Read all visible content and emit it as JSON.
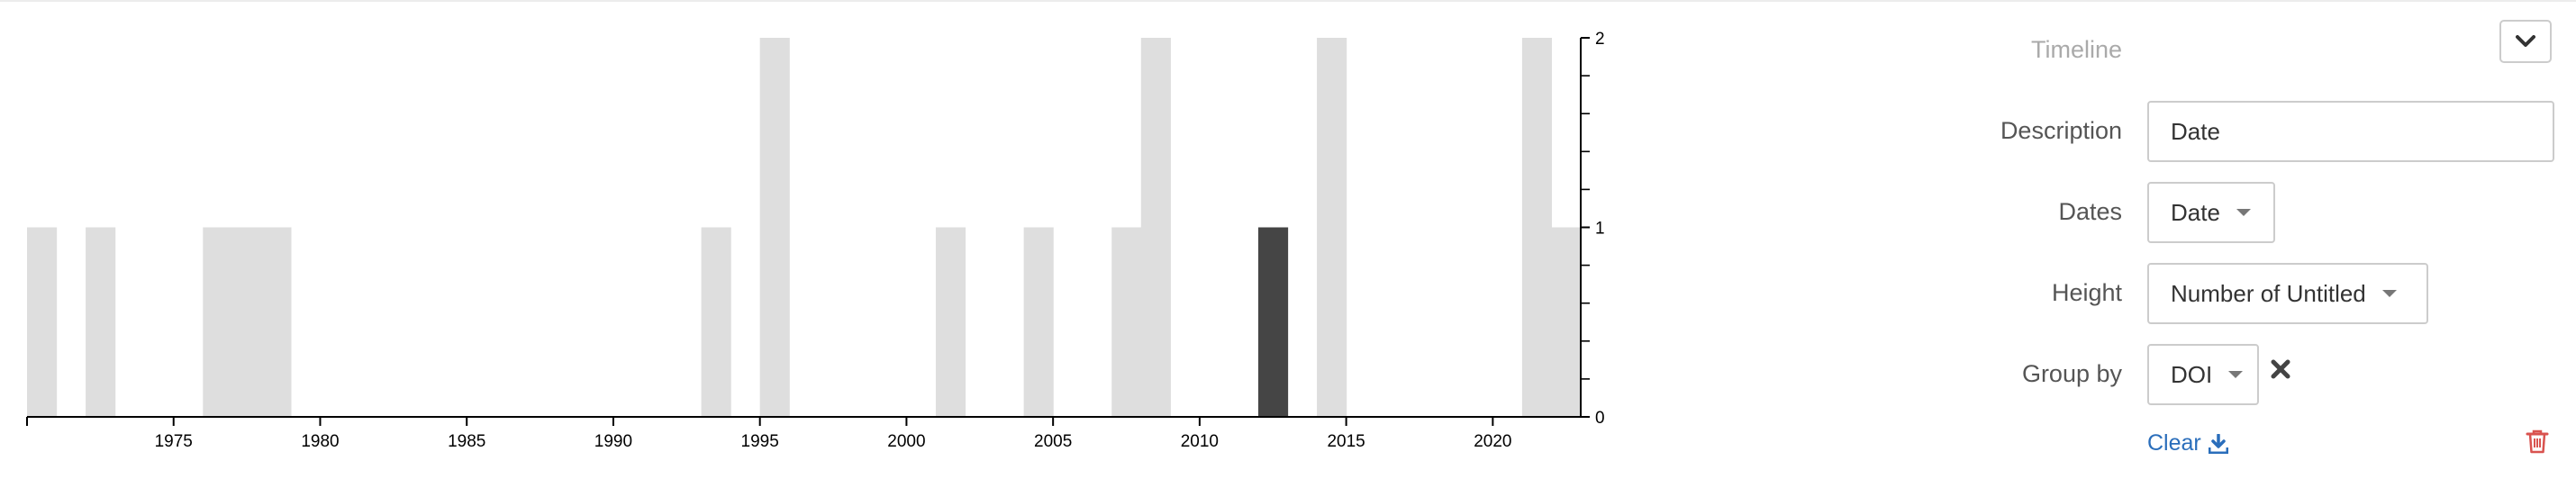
{
  "chart_data": {
    "type": "bar",
    "x": [
      1970,
      1972,
      1976,
      1977,
      1978,
      1993,
      1995,
      2001,
      2004,
      2007,
      2008,
      2012,
      2014,
      2021,
      2022
    ],
    "values": [
      1,
      1,
      1,
      1,
      1,
      1,
      2,
      1,
      1,
      1,
      2,
      1,
      2,
      2,
      1
    ],
    "highlighted": [
      2012
    ],
    "xlim": [
      1970,
      2023
    ],
    "ylim": [
      0,
      2
    ],
    "x_ticks": [
      "1975",
      "1980",
      "1985",
      "1990",
      "1995",
      "2000",
      "2005",
      "2010",
      "2015",
      "2020"
    ],
    "y_ticks": [
      "0",
      "1",
      "2"
    ],
    "bar_color": "#dedede",
    "highlight_color": "#454545",
    "title": "",
    "xlabel": "",
    "ylabel": ""
  },
  "panel": {
    "title": "Timeline",
    "collapse_icon": "chevron-down-icon",
    "description_label": "Description",
    "description_value": "Date",
    "dates_label": "Dates",
    "dates_value": "Date",
    "height_label": "Height",
    "height_value": "Number of Untitled",
    "groupby_label": "Group by",
    "groupby_value": "DOI",
    "remove_icon": "close-icon",
    "clear_label": "Clear",
    "clear_icon": "download-icon",
    "delete_icon": "trash-icon",
    "link_color": "#2a6ebb",
    "delete_color": "#d9534f"
  }
}
